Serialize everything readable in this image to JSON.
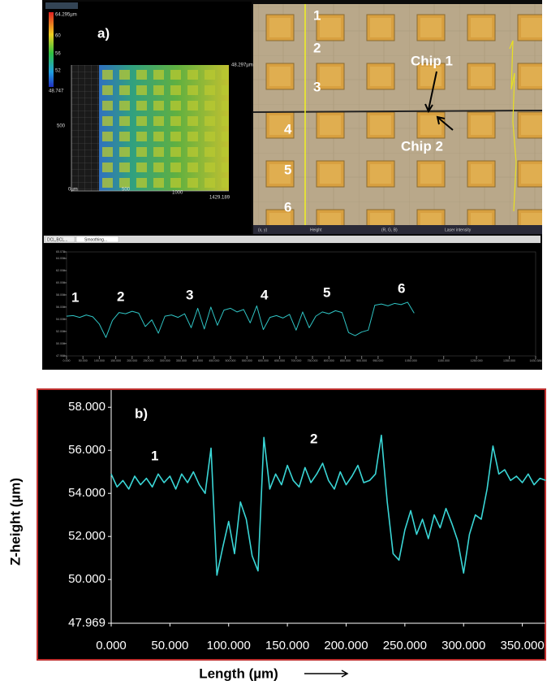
{
  "panel_a": {
    "label": "a)",
    "chip_labels": [
      "Chip 1",
      "Chip 2"
    ],
    "image_numbers": [
      "1",
      "2",
      "3",
      "4",
      "5",
      "6"
    ],
    "colorbar_labels": [
      "64.295µm",
      "60",
      "56",
      "52",
      "48.747"
    ],
    "height_map_axis_labels": [
      "0µm",
      "500",
      "1000",
      "1429.189",
      "500",
      "48.297µm"
    ],
    "image_toolbar": [
      "(x, y)",
      "Height",
      "(R, G, B)",
      "Laser intensity"
    ],
    "profile_tabs": [
      "DCL,BCL...",
      "Smoothing..."
    ],
    "profile_labels": [
      "1",
      "2",
      "3",
      "4",
      "5",
      "6"
    ]
  },
  "panel_b": {
    "label": "b)",
    "annotations": [
      "1",
      "2"
    ]
  },
  "chart_data": [
    {
      "type": "line",
      "color": "#2fc4c4",
      "xlim": [
        0,
        1430.384
      ],
      "ylim": [
        47.969,
        65.072
      ],
      "xticks": [
        {
          "value": 0,
          "label": "0.000"
        },
        {
          "value": 50,
          "label": "50.000"
        },
        {
          "value": 100,
          "label": "100.000"
        },
        {
          "value": 150,
          "label": "150.000"
        },
        {
          "value": 200,
          "label": "200.000"
        },
        {
          "value": 250,
          "label": "250.000"
        },
        {
          "value": 300,
          "label": "300.000"
        },
        {
          "value": 350,
          "label": "350.000"
        },
        {
          "value": 400,
          "label": "400.000"
        },
        {
          "value": 450,
          "label": "450.000"
        },
        {
          "value": 500,
          "label": "500.000"
        },
        {
          "value": 550,
          "label": "550.000"
        },
        {
          "value": 600,
          "label": "600.000"
        },
        {
          "value": 650,
          "label": "650.000"
        },
        {
          "value": 700,
          "label": "700.000"
        },
        {
          "value": 750,
          "label": "750.000"
        },
        {
          "value": 800,
          "label": "800.000"
        },
        {
          "value": 850,
          "label": "850.000"
        },
        {
          "value": 900,
          "label": "900.000"
        },
        {
          "value": 950,
          "label": "950.000"
        },
        {
          "value": 1050,
          "label": "1050.000"
        },
        {
          "value": 1150,
          "label": "1150.000"
        },
        {
          "value": 1250,
          "label": "1250.000"
        },
        {
          "value": 1350,
          "label": "1350.000"
        },
        1430.384
      ],
      "yticks": [
        47.969,
        {
          "value": 50,
          "label": "50.000"
        },
        {
          "value": 52,
          "label": "52.000"
        },
        {
          "value": 54,
          "label": "54.000"
        },
        {
          "value": 56,
          "label": "56.000"
        },
        {
          "value": 58,
          "label": "58.000"
        },
        {
          "value": 60,
          "label": "60.000"
        },
        {
          "value": 62,
          "label": "62.000"
        },
        {
          "value": 64,
          "label": "64.000"
        },
        65.072
      ],
      "x": [
        0,
        20,
        40,
        60,
        80,
        100,
        120,
        140,
        160,
        180,
        200,
        220,
        240,
        260,
        280,
        300,
        320,
        340,
        360,
        380,
        400,
        420,
        440,
        460,
        480,
        500,
        520,
        540,
        560,
        580,
        600,
        620,
        640,
        660,
        680,
        700,
        720,
        740,
        760,
        780,
        800,
        820,
        840,
        860,
        880,
        900,
        920,
        940,
        960,
        980,
        1000,
        1020,
        1040,
        1060
      ],
      "values": [
        54.5,
        54.6,
        54.3,
        54.7,
        54.4,
        53.2,
        51.0,
        53.8,
        55.1,
        54.9,
        55.3,
        55.0,
        52.8,
        53.9,
        51.7,
        54.5,
        54.7,
        54.3,
        54.9,
        52.6,
        55.8,
        52.4,
        56.0,
        53.0,
        55.5,
        55.8,
        55.2,
        55.6,
        53.4,
        56.2,
        52.3,
        54.3,
        54.6,
        54.2,
        54.8,
        52.2,
        55.2,
        52.6,
        54.5,
        55.2,
        54.9,
        55.4,
        55.1,
        51.8,
        51.3,
        51.9,
        52.2,
        56.3,
        56.5,
        56.2,
        56.6,
        56.4,
        56.8,
        55.0
      ]
    },
    {
      "type": "line",
      "color": "#3ad6d6",
      "y_label": "Z-height (µm)",
      "x_label": "Length (µm)",
      "xlim": [
        0,
        371
      ],
      "ylim": [
        47.969,
        58.8
      ],
      "xticks": [
        {
          "value": 0,
          "label": "0.000"
        },
        {
          "value": 50,
          "label": "50.000"
        },
        {
          "value": 100,
          "label": "100.000"
        },
        {
          "value": 150,
          "label": "150.000"
        },
        {
          "value": 200,
          "label": "200.000"
        },
        {
          "value": 250,
          "label": "250.000"
        },
        {
          "value": 300,
          "label": "300.000"
        },
        {
          "value": 350,
          "label": "350.000"
        }
      ],
      "yticks": [
        47.969,
        {
          "value": 50,
          "label": "50.000"
        },
        {
          "value": 52,
          "label": "52.000"
        },
        {
          "value": 54,
          "label": "54.000"
        },
        {
          "value": 56,
          "label": "56.000"
        },
        {
          "value": 58,
          "label": "58.000"
        }
      ],
      "x": [
        0,
        5,
        10,
        15,
        20,
        25,
        30,
        35,
        40,
        45,
        50,
        55,
        60,
        65,
        70,
        75,
        80,
        85,
        90,
        95,
        100,
        105,
        110,
        115,
        120,
        125,
        130,
        135,
        140,
        145,
        150,
        155,
        160,
        165,
        170,
        175,
        180,
        185,
        190,
        195,
        200,
        205,
        210,
        215,
        220,
        225,
        230,
        235,
        240,
        245,
        250,
        255,
        260,
        265,
        270,
        275,
        280,
        285,
        290,
        295,
        300,
        305,
        310,
        315,
        320,
        325,
        330,
        335,
        340,
        345,
        350,
        355,
        360,
        365,
        370
      ],
      "values": [
        54.9,
        54.3,
        54.6,
        54.2,
        54.8,
        54.4,
        54.7,
        54.3,
        54.9,
        54.5,
        54.8,
        54.2,
        54.9,
        54.5,
        55.0,
        54.4,
        54.0,
        56.1,
        50.2,
        51.5,
        52.7,
        51.2,
        53.6,
        52.8,
        51.1,
        50.4,
        56.6,
        54.2,
        54.9,
        54.4,
        55.3,
        54.6,
        54.3,
        55.2,
        54.5,
        54.9,
        55.4,
        54.6,
        54.2,
        55.0,
        54.4,
        54.8,
        55.3,
        54.5,
        54.6,
        54.9,
        56.7,
        53.6,
        51.2,
        50.9,
        52.3,
        53.2,
        52.1,
        52.8,
        51.9,
        53.0,
        52.4,
        53.3,
        52.6,
        51.8,
        50.3,
        52.1,
        53.0,
        52.8,
        54.2,
        56.2,
        54.9,
        55.1,
        54.6,
        54.8,
        54.5,
        54.9,
        54.4,
        54.7,
        54.6
      ]
    }
  ]
}
